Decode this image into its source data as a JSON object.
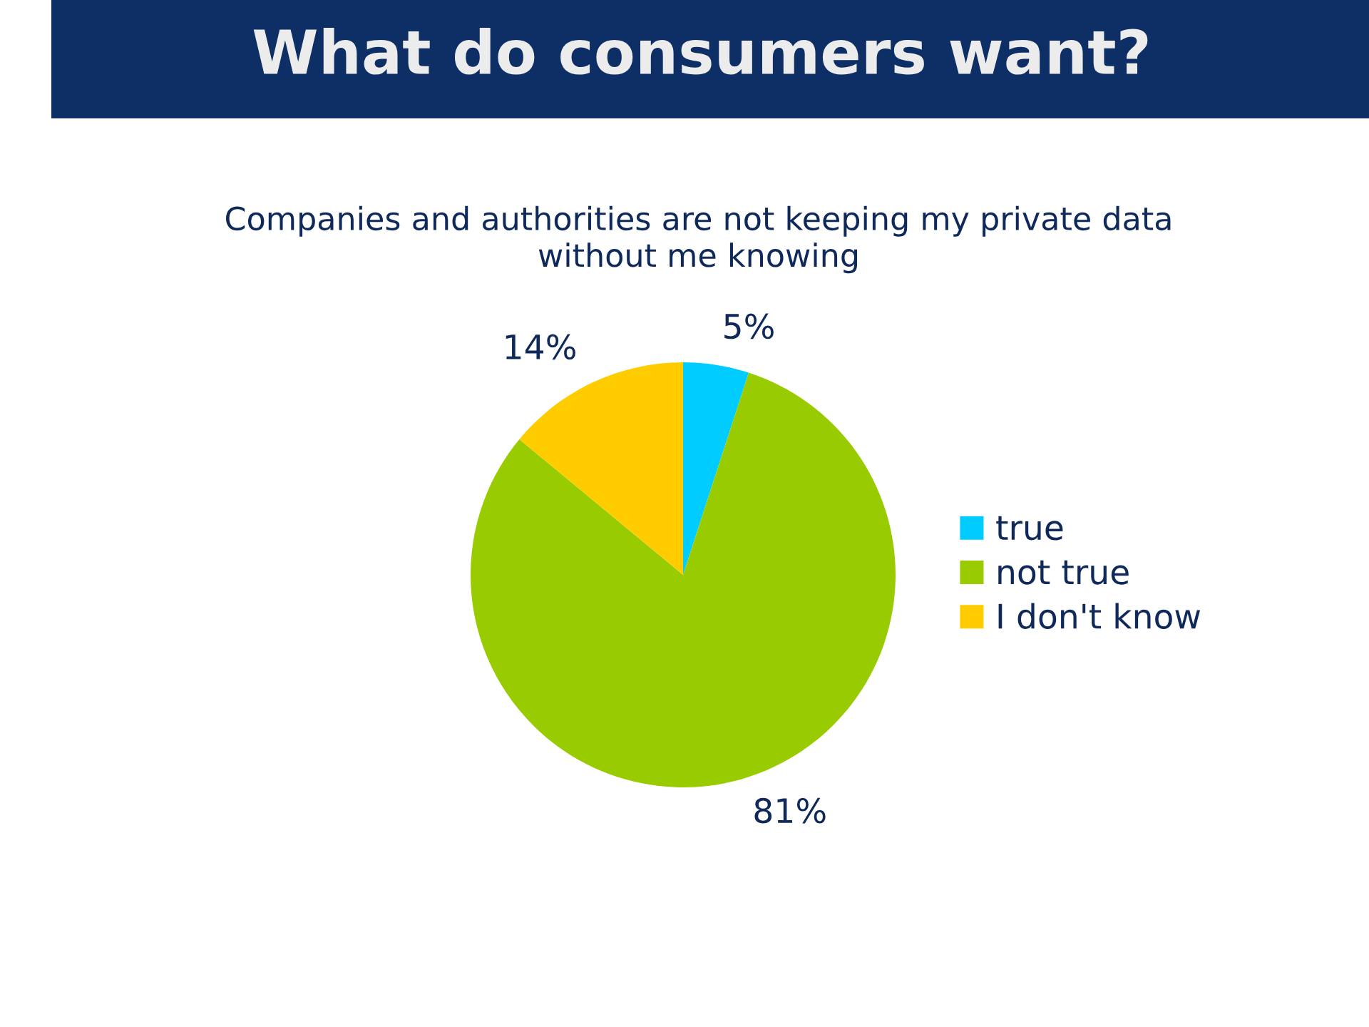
{
  "chart_data": {
    "type": "pie",
    "title": "What do consumers want?",
    "subtitle": "Companies and authorities are not keeping my private data without me knowing",
    "categories": [
      "true",
      "not true",
      "I don't know"
    ],
    "values": [
      5,
      81,
      14
    ],
    "value_labels": [
      "5%",
      "81%",
      "14%"
    ],
    "colors": [
      "#00ccff",
      "#99cc00",
      "#ffcc00"
    ],
    "legend": "right"
  }
}
